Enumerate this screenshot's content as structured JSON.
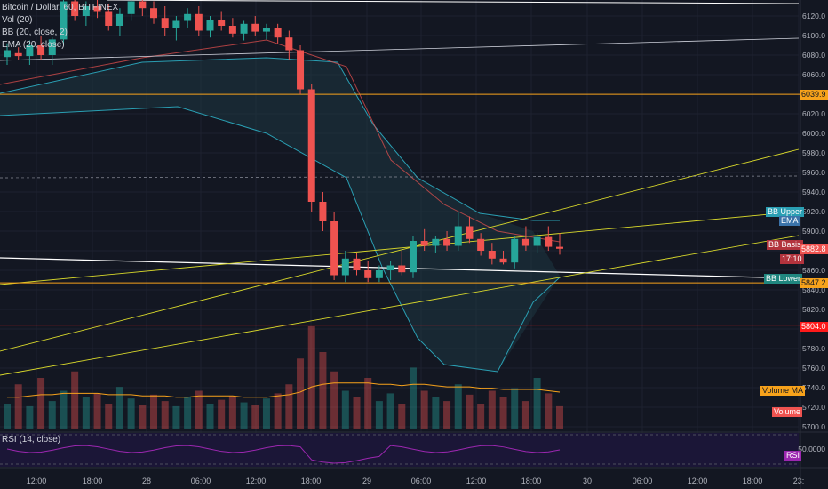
{
  "legend": {
    "title": "Bitcoin / Dollar, 60, BITFINEX",
    "vol": "Vol (20)",
    "bb": "BB (20, close, 2)",
    "ema": "EMA (20, close)",
    "rsi": "RSI (14, close)"
  },
  "colors": {
    "background": "#131722",
    "up": "#26a69a",
    "down": "#ef5350",
    "bb_band": "#2a9fb3",
    "ema": "#ef5350",
    "orange_line": "#f7a21b",
    "red_line": "#ff1a1a",
    "yellow_line": "#d8d82b",
    "white_line": "#ffffff",
    "rsi": "#9c27b0"
  },
  "price_axis": {
    "ticks": [
      "6120.0",
      "6100.0",
      "6080.0",
      "6060.0",
      "6040.0",
      "6020.0",
      "6000.0",
      "5980.0",
      "5960.0",
      "5940.0",
      "5920.0",
      "5900.0",
      "5880.0",
      "5860.0",
      "5840.0",
      "5820.0",
      "5800.0",
      "5780.0",
      "5760.0",
      "5740.0",
      "5720.0",
      "5700.0"
    ],
    "rsi_ticks": [
      "50.0000"
    ]
  },
  "time_axis": [
    "12:00",
    "18:00",
    "28",
    "06:00",
    "12:00",
    "18:00",
    "29",
    "06:00",
    "12:00",
    "18:00",
    "30",
    "06:00",
    "12:00",
    "18:00",
    "23:"
  ],
  "tags": {
    "bb_upper": "BB Upper",
    "ema": "EMA",
    "bb_basis": "BB Basis",
    "countdown": "17:10",
    "bb_lower": "BB Lower",
    "level_orange": "6039.9",
    "last_price": "5882.8",
    "level_yellow": "5847.2",
    "level_red": "5804.0",
    "volume_ma": "Volume MA",
    "volume": "Volume",
    "rsi": "RSI"
  },
  "chart_data": {
    "type": "candlestick",
    "ohlc": [
      [
        6078,
        6092,
        6070,
        6085
      ],
      [
        6082,
        6088,
        6075,
        6079
      ],
      [
        6079,
        6095,
        6070,
        6090
      ],
      [
        6090,
        6100,
        6075,
        6080
      ],
      [
        6080,
        6098,
        6070,
        6096
      ],
      [
        6096,
        6140,
        6090,
        6135
      ],
      [
        6135,
        6145,
        6115,
        6120
      ],
      [
        6120,
        6135,
        6110,
        6130
      ],
      [
        6130,
        6140,
        6118,
        6125
      ],
      [
        6125,
        6132,
        6105,
        6110
      ],
      [
        6110,
        6128,
        6100,
        6122
      ],
      [
        6122,
        6140,
        6115,
        6135
      ],
      [
        6135,
        6145,
        6120,
        6128
      ],
      [
        6128,
        6135,
        6112,
        6118
      ],
      [
        6118,
        6130,
        6100,
        6108
      ],
      [
        6108,
        6120,
        6095,
        6115
      ],
      [
        6115,
        6128,
        6108,
        6122
      ],
      [
        6122,
        6130,
        6100,
        6105
      ],
      [
        6105,
        6120,
        6098,
        6116
      ],
      [
        6116,
        6125,
        6105,
        6110
      ],
      [
        6110,
        6118,
        6098,
        6102
      ],
      [
        6102,
        6115,
        6095,
        6112
      ],
      [
        6112,
        6120,
        6100,
        6104
      ],
      [
        6104,
        6112,
        6096,
        6108
      ],
      [
        6108,
        6112,
        6092,
        6098
      ],
      [
        6098,
        6105,
        6075,
        6085
      ],
      [
        6085,
        6090,
        6040,
        6045
      ],
      [
        6045,
        6050,
        5920,
        5930
      ],
      [
        5930,
        5940,
        5900,
        5910
      ],
      [
        5910,
        5920,
        5850,
        5855
      ],
      [
        5855,
        5880,
        5848,
        5872
      ],
      [
        5872,
        5878,
        5855,
        5860
      ],
      [
        5860,
        5870,
        5848,
        5852
      ],
      [
        5852,
        5865,
        5848,
        5860
      ],
      [
        5860,
        5870,
        5850,
        5865
      ],
      [
        5865,
        5880,
        5855,
        5858
      ],
      [
        5858,
        5895,
        5852,
        5890
      ],
      [
        5890,
        5902,
        5880,
        5885
      ],
      [
        5885,
        5895,
        5878,
        5892
      ],
      [
        5892,
        5900,
        5880,
        5885
      ],
      [
        5885,
        5920,
        5880,
        5905
      ],
      [
        5905,
        5915,
        5888,
        5892
      ],
      [
        5892,
        5898,
        5875,
        5880
      ],
      [
        5880,
        5888,
        5866,
        5872
      ],
      [
        5872,
        5880,
        5866,
        5868
      ],
      [
        5868,
        5895,
        5862,
        5892
      ],
      [
        5892,
        5905,
        5880,
        5885
      ],
      [
        5885,
        5898,
        5878,
        5894
      ],
      [
        5894,
        5905,
        5880,
        5884
      ],
      [
        5884,
        5898,
        5876,
        5882
      ]
    ],
    "volume": [
      20,
      35,
      18,
      40,
      22,
      30,
      45,
      25,
      28,
      20,
      33,
      24,
      19,
      27,
      22,
      18,
      25,
      30,
      20,
      23,
      26,
      21,
      19,
      24,
      28,
      35,
      55,
      80,
      60,
      45,
      30,
      25,
      40,
      22,
      28,
      20,
      48,
      30,
      25,
      22,
      35,
      27,
      20,
      30,
      25,
      32,
      22,
      40,
      28,
      18
    ],
    "volume_ma": [
      25,
      25,
      26,
      27,
      27,
      28,
      28,
      28,
      28,
      27,
      27,
      27,
      26,
      26,
      26,
      25,
      25,
      26,
      26,
      26,
      26,
      25,
      25,
      25,
      26,
      27,
      29,
      33,
      35,
      36,
      36,
      36,
      36,
      35,
      35,
      34,
      35,
      35,
      34,
      33,
      33,
      33,
      32,
      32,
      31,
      31,
      31,
      31,
      30,
      29
    ],
    "lines": {
      "orange_level": 6039.9,
      "red_level": 5804.0,
      "yellow_level": 5847.2
    },
    "bb_upper": 5912,
    "ema": 5905,
    "bb_basis": 5885,
    "bb_lower": 5858,
    "rsi_level": 50
  }
}
